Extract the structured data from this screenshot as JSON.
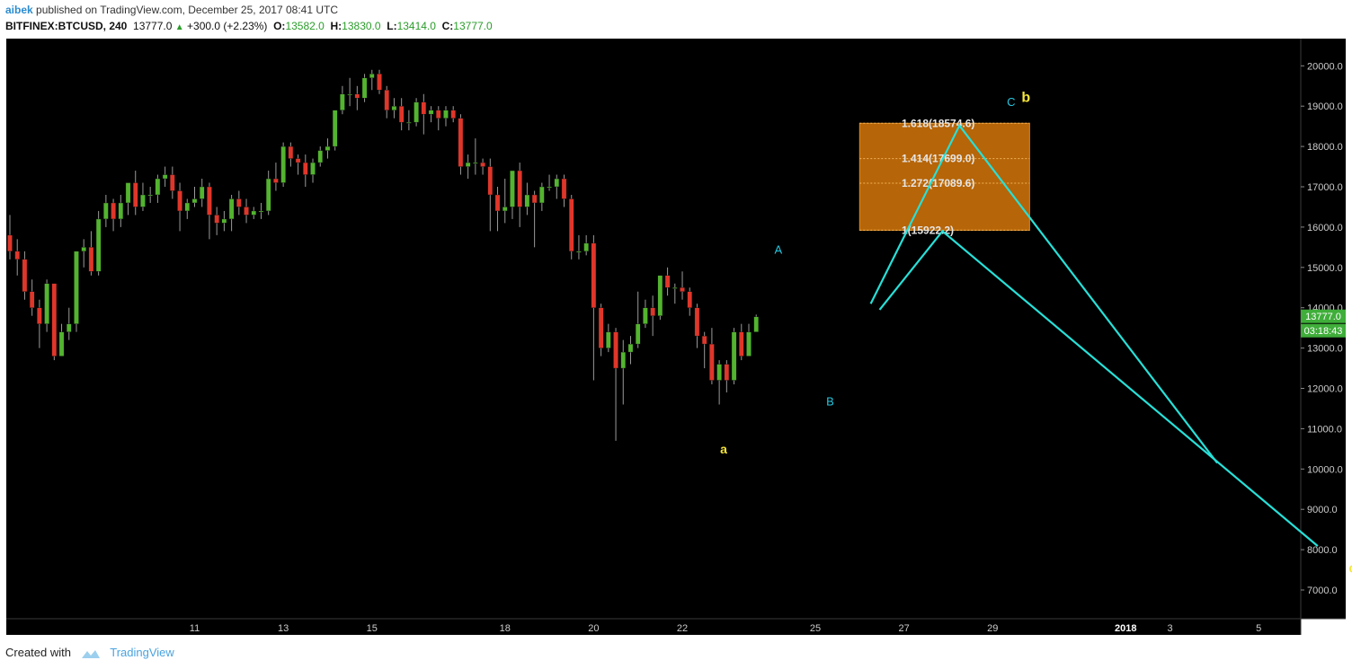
{
  "header": {
    "user": "aibek",
    "published_text": " published on TradingView.com, December 25, 2017 08:41 UTC",
    "symbol": "BITFINEX:BTCUSD, 240",
    "price": "13777.0",
    "change": "+300.0 (+2.23%)",
    "o_label": "O:",
    "o_value": "13582.0",
    "h_label": "H:",
    "h_value": "13830.0",
    "l_label": "L:",
    "l_value": "13414.0",
    "c_label": "C:",
    "c_value": "13777.0"
  },
  "footer": {
    "created_with": "Created with",
    "brand": "TradingView"
  },
  "colors": {
    "up": "#53b42f",
    "down": "#e0362a",
    "wave": "#27e0d8",
    "wave_label": "#26c6e0",
    "label_yellow": "#f6e63a",
    "box": "#c06a08",
    "price_tag": "#3fae3a"
  },
  "chart_data": {
    "type": "candlestick",
    "ylim": [
      6300,
      20300
    ],
    "y_ticks": [
      7000,
      8000,
      9000,
      10000,
      11000,
      12000,
      13000,
      14000,
      15000,
      16000,
      17000,
      18000,
      19000,
      20000
    ],
    "x_ticks": [
      {
        "label": "11",
        "idx": 25
      },
      {
        "label": "13",
        "idx": 37
      },
      {
        "label": "15",
        "idx": 49
      },
      {
        "label": "18",
        "idx": 67
      },
      {
        "label": "20",
        "idx": 79
      },
      {
        "label": "22",
        "idx": 91
      },
      {
        "label": "25",
        "idx": 109
      },
      {
        "label": "27",
        "idx": 121
      },
      {
        "label": "29",
        "idx": 133
      },
      {
        "label": "2018",
        "idx": 151
      },
      {
        "label": "3",
        "idx": 157
      },
      {
        "label": "5",
        "idx": 169
      }
    ],
    "price_tag": "13777.0",
    "countdown_tag": "03:18:43",
    "candles": [
      [
        15800,
        15400,
        16300,
        15200
      ],
      [
        15400,
        15200,
        15700,
        14800
      ],
      [
        15200,
        14400,
        15400,
        14200
      ],
      [
        14400,
        14000,
        14700,
        13800
      ],
      [
        14000,
        13600,
        14200,
        13000
      ],
      [
        13600,
        14600,
        14700,
        13400
      ],
      [
        14600,
        12800,
        14600,
        12700
      ],
      [
        12800,
        13400,
        13600,
        12800
      ],
      [
        13400,
        13600,
        14000,
        13200
      ],
      [
        13600,
        15400,
        15400,
        13400
      ],
      [
        15400,
        15500,
        15700,
        15000
      ],
      [
        15500,
        14900,
        15900,
        14800
      ],
      [
        14900,
        16200,
        16400,
        14800
      ],
      [
        16200,
        16600,
        16800,
        16000
      ],
      [
        16600,
        16200,
        16700,
        15900
      ],
      [
        16200,
        16600,
        16800,
        16000
      ],
      [
        16600,
        17100,
        17100,
        16300
      ],
      [
        17100,
        16500,
        17400,
        16300
      ],
      [
        16500,
        16800,
        17100,
        16400
      ],
      [
        16800,
        16800,
        17000,
        16600
      ],
      [
        16800,
        17200,
        17300,
        16600
      ],
      [
        17200,
        17300,
        17500,
        17000
      ],
      [
        17300,
        16900,
        17500,
        16700
      ],
      [
        16900,
        16400,
        17100,
        15900
      ],
      [
        16400,
        16600,
        16700,
        16200
      ],
      [
        16600,
        16700,
        17000,
        16500
      ],
      [
        16700,
        17000,
        17200,
        16500
      ],
      [
        17000,
        16300,
        17100,
        15700
      ],
      [
        16300,
        16100,
        16500,
        15800
      ],
      [
        16100,
        16200,
        16400,
        15900
      ],
      [
        16200,
        16700,
        16800,
        15900
      ],
      [
        16700,
        16500,
        16900,
        16300
      ],
      [
        16500,
        16300,
        16700,
        16100
      ],
      [
        16300,
        16400,
        16500,
        16200
      ],
      [
        16400,
        16400,
        16600,
        16200
      ],
      [
        16400,
        17200,
        17400,
        16300
      ],
      [
        17200,
        17100,
        17600,
        16900
      ],
      [
        17100,
        18000,
        18100,
        17000
      ],
      [
        18000,
        17700,
        18100,
        17500
      ],
      [
        17700,
        17600,
        17800,
        17300
      ],
      [
        17600,
        17300,
        17800,
        17000
      ],
      [
        17300,
        17600,
        17700,
        17100
      ],
      [
        17600,
        17900,
        18000,
        17500
      ],
      [
        17900,
        18000,
        18200,
        17700
      ],
      [
        18000,
        18900,
        18900,
        17900
      ],
      [
        18900,
        19300,
        19500,
        18800
      ],
      [
        19300,
        19300,
        19700,
        19000
      ],
      [
        19300,
        19200,
        19500,
        18900
      ],
      [
        19200,
        19700,
        19800,
        19100
      ],
      [
        19700,
        19800,
        19900,
        19400
      ],
      [
        19800,
        19400,
        19900,
        19300
      ],
      [
        19400,
        18900,
        19500,
        18700
      ],
      [
        18900,
        19000,
        19200,
        18700
      ],
      [
        19000,
        18600,
        19200,
        18400
      ],
      [
        18600,
        18600,
        18900,
        18400
      ],
      [
        18600,
        19100,
        19200,
        18500
      ],
      [
        19100,
        18800,
        19300,
        18300
      ],
      [
        18800,
        18900,
        19000,
        18600
      ],
      [
        18900,
        18700,
        19000,
        18400
      ],
      [
        18700,
        18900,
        19000,
        18500
      ],
      [
        18900,
        18700,
        19000,
        18600
      ],
      [
        18700,
        17500,
        18800,
        17300
      ],
      [
        17500,
        17600,
        17800,
        17200
      ],
      [
        17600,
        17600,
        18200,
        17300
      ],
      [
        17600,
        17500,
        17700,
        17300
      ],
      [
        17500,
        16800,
        17700,
        15900
      ],
      [
        16800,
        16400,
        17000,
        15900
      ],
      [
        16400,
        16500,
        17200,
        16100
      ],
      [
        16500,
        17400,
        17400,
        16200
      ],
      [
        17400,
        16500,
        17600,
        16000
      ],
      [
        16500,
        16800,
        17100,
        16300
      ],
      [
        16800,
        16600,
        16900,
        15500
      ],
      [
        16600,
        17000,
        17100,
        16400
      ],
      [
        17000,
        17000,
        17300,
        16900
      ],
      [
        17000,
        17200,
        17300,
        16700
      ],
      [
        17200,
        16700,
        17300,
        16500
      ],
      [
        16700,
        15400,
        16800,
        15200
      ],
      [
        15400,
        15400,
        15800,
        15200
      ],
      [
        15400,
        15600,
        15800,
        15300
      ],
      [
        15600,
        14000,
        15800,
        12200
      ],
      [
        14000,
        13000,
        14100,
        12800
      ],
      [
        13000,
        13400,
        13600,
        12900
      ],
      [
        13400,
        12500,
        13500,
        10700
      ],
      [
        12500,
        12900,
        13200,
        11600
      ],
      [
        12900,
        13100,
        13300,
        12600
      ],
      [
        13100,
        13600,
        14400,
        13000
      ],
      [
        13600,
        14000,
        14200,
        13500
      ],
      [
        14000,
        13800,
        14300,
        13300
      ],
      [
        13800,
        14800,
        14800,
        13700
      ],
      [
        14800,
        14500,
        15000,
        14300
      ],
      [
        14500,
        14500,
        14600,
        14100
      ],
      [
        14500,
        14400,
        14900,
        14200
      ],
      [
        14400,
        14000,
        14500,
        13800
      ],
      [
        14000,
        13300,
        14100,
        13000
      ],
      [
        13300,
        13100,
        13400,
        12500
      ],
      [
        13100,
        12200,
        13500,
        12100
      ],
      [
        12200,
        12600,
        12700,
        11600
      ],
      [
        12600,
        12200,
        12700,
        11900
      ],
      [
        12200,
        13400,
        13500,
        12100
      ],
      [
        13400,
        12800,
        13600,
        12700
      ],
      [
        12800,
        13400,
        13600,
        13100
      ],
      [
        13400,
        13777,
        13830,
        13414
      ]
    ],
    "projection": {
      "box": {
        "x0idx": 115,
        "x1idx": 138,
        "y0": 15922.2,
        "y1": 18574.6
      },
      "fib_levels": [
        {
          "label": "1.618(18574.6)",
          "value": 18574.6
        },
        {
          "label": "1.414(17699.0)",
          "value": 17699.0
        },
        {
          "label": "1.272(17089.6)",
          "value": 17089.6
        },
        {
          "label": "1(15922.2)",
          "value": 15922.2
        }
      ],
      "path_upper": [
        [
          116.5,
          14100
        ],
        [
          128.5,
          18520
        ],
        [
          163.4,
          10150
        ]
      ],
      "path_lower": [
        [
          117.7,
          13950
        ],
        [
          126.2,
          15900
        ],
        [
          177,
          8090
        ]
      ]
    },
    "labels": [
      {
        "text": "A",
        "idx": 104,
        "value": 15340,
        "color": "wave_label",
        "size": 13
      },
      {
        "text": "B",
        "idx": 111,
        "value": 11580,
        "color": "wave_label",
        "size": 13
      },
      {
        "text": "a",
        "idx": 96.6,
        "value": 10380,
        "color": "label_yellow",
        "size": 14
      },
      {
        "text": "C",
        "idx": 135.5,
        "value": 19000,
        "color": "wave_label",
        "size": 13
      },
      {
        "text": "b",
        "idx": 137.5,
        "value": 19100,
        "color": "label_yellow",
        "size": 16
      },
      {
        "text": "c",
        "idx": 181.7,
        "value": 7430,
        "color": "label_yellow",
        "size": 15
      }
    ]
  }
}
